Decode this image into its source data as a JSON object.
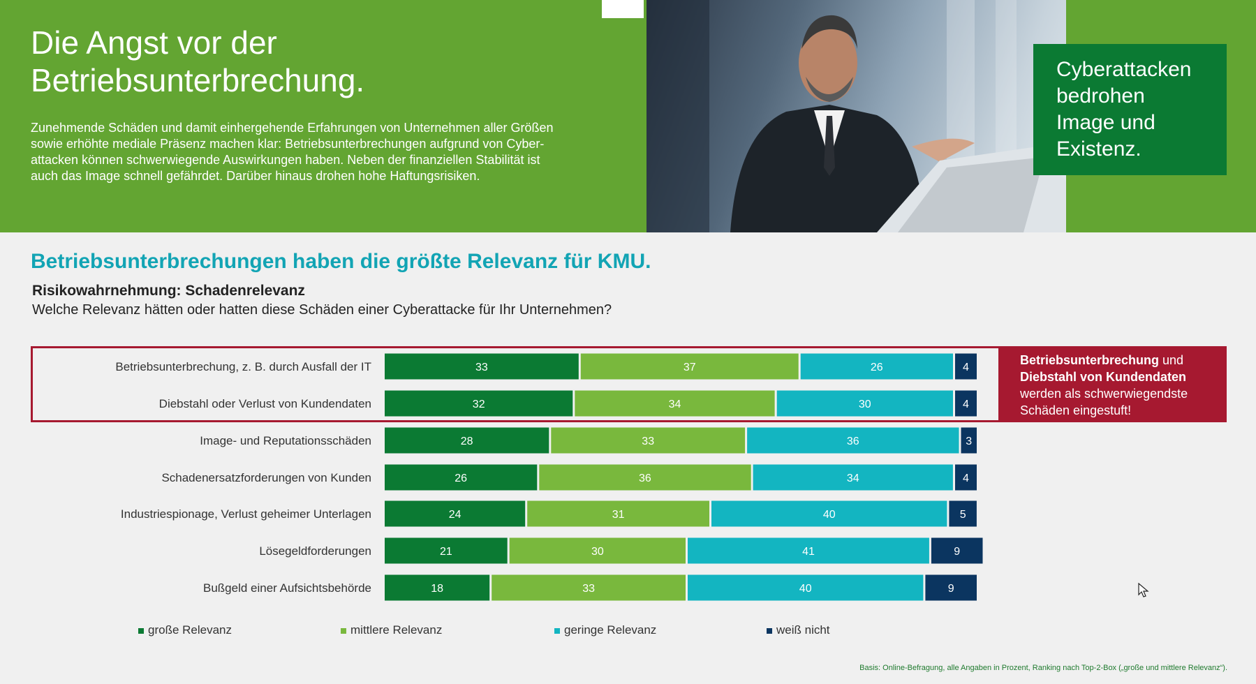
{
  "hero": {
    "title": "Die Angst vor der\nBetriebsunterbrechung.",
    "body": "Zunehmende Schäden und damit einhergehende Erfahrungen von Unternehmen aller Größen\nsowie erhöhte mediale Präsenz machen klar: Betriebsunterbrechungen aufgrund von Cyber-\nattacken können schwerwiegende Auswirkungen haben. Neben der finanziellen Stabilität ist\nauch das Image schnell gefährdet. Darüber hinaus drohen hohe Haftungsrisiken.",
    "teaser": "Cyberattacken\nbedrohen\nImage und\nExistenz.",
    "photo_icon": "businessman-at-laptop-photo"
  },
  "section": {
    "heading": "Betriebsunterbrechungen haben die größte Relevanz für KMU."
  },
  "callout": {
    "bold1": "Betriebsunterbrechung",
    "text1": " und ",
    "bold2": "Diebstahl von Kundendaten",
    "text2": " werden als schwerwiegendste Schäden eingestuft!"
  },
  "footnote": "Basis: Online-Befragung, alle Angaben in Prozent, Ranking nach Top-2-Box („große und mittlere Relevanz“).",
  "colors": {
    "hero_green": "#63a532",
    "dark_green": "#0b7a33",
    "light_green": "#79b83d",
    "teal": "#13b5c1",
    "navy": "#0b3560",
    "highlight_red": "#a61930",
    "heading_teal": "#12a4b4"
  },
  "chart_data": {
    "type": "bar",
    "orientation": "horizontal",
    "stacked": true,
    "title": "Risikowahrnehmung: Schadenrelevanz",
    "subtitle": "Welche Relevanz hätten oder hatten diese Schäden einer Cyberattacke für Ihr Unternehmen?",
    "categories": [
      "Betriebsunterbrechung, z. B. durch Ausfall der IT",
      "Diebstahl oder Verlust von Kundendaten",
      "Image- und Reputationsschäden",
      "Schadenersatzforderungen von Kunden",
      "Industriespionage, Verlust geheimer Unterlagen",
      "Lösegeldforderungen",
      "Bußgeld einer Aufsichtsbehörde"
    ],
    "series": [
      {
        "name": "große Relevanz",
        "color": "#0b7a33",
        "values": [
          33,
          32,
          28,
          26,
          24,
          21,
          18
        ]
      },
      {
        "name": "mittlere Relevanz",
        "color": "#79b83d",
        "values": [
          37,
          34,
          33,
          36,
          31,
          30,
          33
        ]
      },
      {
        "name": "geringe Relevanz",
        "color": "#13b5c1",
        "values": [
          26,
          30,
          36,
          34,
          40,
          41,
          40
        ]
      },
      {
        "name": "weiß nicht",
        "color": "#0b3560",
        "values": [
          4,
          4,
          3,
          4,
          5,
          9,
          9
        ]
      }
    ],
    "highlighted_categories": [
      0,
      1
    ],
    "xlim": [
      0,
      100
    ],
    "legend_position": "bottom",
    "grid": false
  }
}
